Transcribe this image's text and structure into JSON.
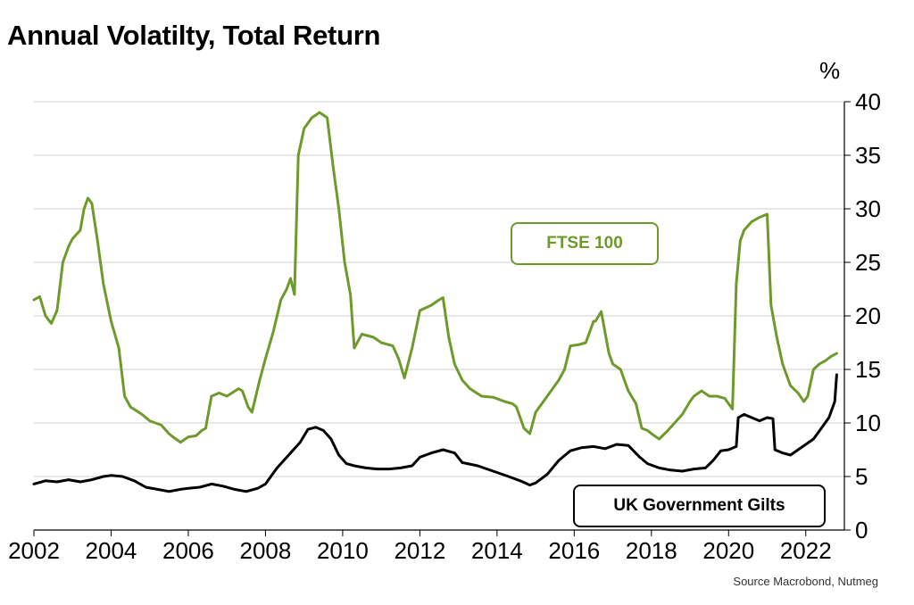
{
  "title": "Annual Volatilty, Total Return",
  "unit": "%",
  "source": "Source Macrobond, Nutmeg",
  "chart_data": {
    "type": "line",
    "title": "Annual Volatilty, Total Return",
    "xlabel": "",
    "ylabel": "%",
    "xlim": [
      2002,
      2023
    ],
    "ylim": [
      0,
      40
    ],
    "x_ticks": [
      "2002",
      "2004",
      "2006",
      "2008",
      "2010",
      "2012",
      "2014",
      "2016",
      "2018",
      "2020",
      "2022"
    ],
    "y_ticks": [
      "0",
      "5",
      "10",
      "15",
      "20",
      "25",
      "30",
      "35",
      "40"
    ],
    "grid": "horizontal",
    "y_axis_side": "right",
    "series": [
      {
        "name": "FTSE 100",
        "color": "#6e9a2c",
        "x": [
          2002.0,
          2002.15,
          2002.3,
          2002.45,
          2002.6,
          2002.75,
          2002.9,
          2003.0,
          2003.2,
          2003.3,
          2003.4,
          2003.5,
          2003.65,
          2003.8,
          2004.0,
          2004.2,
          2004.35,
          2004.5,
          2004.8,
          2005.0,
          2005.3,
          2005.5,
          2005.6,
          2005.8,
          2006.0,
          2006.2,
          2006.35,
          2006.45,
          2006.6,
          2006.8,
          2007.0,
          2007.3,
          2007.4,
          2007.55,
          2007.65,
          2007.85,
          2008.0,
          2008.2,
          2008.4,
          2008.55,
          2008.65,
          2008.75,
          2008.85,
          2009.0,
          2009.2,
          2009.4,
          2009.6,
          2009.75,
          2009.9,
          2010.05,
          2010.2,
          2010.3,
          2010.5,
          2010.8,
          2011.0,
          2011.3,
          2011.45,
          2011.6,
          2011.8,
          2012.0,
          2012.3,
          2012.5,
          2012.6,
          2012.75,
          2012.9,
          2013.1,
          2013.3,
          2013.6,
          2013.9,
          2014.2,
          2014.4,
          2014.5,
          2014.7,
          2014.85,
          2015.0,
          2015.3,
          2015.6,
          2015.75,
          2015.9,
          2016.1,
          2016.3,
          2016.5,
          2016.55,
          2016.7,
          2016.9,
          2017.0,
          2017.2,
          2017.4,
          2017.6,
          2017.75,
          2017.9,
          2018.0,
          2018.2,
          2018.4,
          2018.6,
          2018.8,
          2019.0,
          2019.1,
          2019.3,
          2019.5,
          2019.7,
          2019.9,
          2020.1,
          2020.2,
          2020.3,
          2020.4,
          2020.6,
          2020.8,
          2021.0,
          2021.1,
          2021.25,
          2021.4,
          2021.6,
          2021.8,
          2021.95,
          2022.05,
          2022.2,
          2022.35,
          2022.5,
          2022.65,
          2022.8
        ],
        "values": [
          21.5,
          21.8,
          20.0,
          19.3,
          20.5,
          25.0,
          26.5,
          27.2,
          28.0,
          30.0,
          31.0,
          30.5,
          27.0,
          23.0,
          19.5,
          17.0,
          12.5,
          11.5,
          10.8,
          10.2,
          9.8,
          9.0,
          8.7,
          8.2,
          8.7,
          8.8,
          9.3,
          9.5,
          12.5,
          12.8,
          12.5,
          13.2,
          13.0,
          11.5,
          11.0,
          14.0,
          16.0,
          18.5,
          21.5,
          22.5,
          23.5,
          22.0,
          35.0,
          37.5,
          38.5,
          39.0,
          38.5,
          34.0,
          30.0,
          25.0,
          22.0,
          17.0,
          18.3,
          18.0,
          17.5,
          17.2,
          16.0,
          14.2,
          17.0,
          20.5,
          21.0,
          21.5,
          21.7,
          18.0,
          15.5,
          14.0,
          13.2,
          12.5,
          12.4,
          12.0,
          11.8,
          11.5,
          9.5,
          9.0,
          11.0,
          12.5,
          14.0,
          15.0,
          17.2,
          17.3,
          17.5,
          19.5,
          19.5,
          20.4,
          16.5,
          15.5,
          15.0,
          13.0,
          11.8,
          9.5,
          9.3,
          9.0,
          8.5,
          9.2,
          10.0,
          10.8,
          12.0,
          12.5,
          13.0,
          12.5,
          12.5,
          12.3,
          11.3,
          23.0,
          27.0,
          28.0,
          28.8,
          29.2,
          29.5,
          21.0,
          18.0,
          15.5,
          13.5,
          12.8,
          12.0,
          12.5,
          15.0,
          15.5,
          15.8,
          16.2,
          16.5
        ]
      },
      {
        "name": "UK Government Gilts",
        "color": "#000000",
        "x": [
          2002.0,
          2002.3,
          2002.6,
          2002.9,
          2003.2,
          2003.5,
          2003.8,
          2004.0,
          2004.3,
          2004.6,
          2004.9,
          2005.2,
          2005.5,
          2005.8,
          2006.0,
          2006.3,
          2006.6,
          2006.9,
          2007.2,
          2007.5,
          2007.8,
          2008.0,
          2008.3,
          2008.6,
          2008.9,
          2009.1,
          2009.3,
          2009.5,
          2009.7,
          2009.9,
          2010.1,
          2010.3,
          2010.6,
          2010.9,
          2011.2,
          2011.5,
          2011.8,
          2012.0,
          2012.3,
          2012.6,
          2012.9,
          2013.1,
          2013.5,
          2013.9,
          2014.3,
          2014.6,
          2014.85,
          2015.0,
          2015.3,
          2015.6,
          2015.9,
          2016.2,
          2016.5,
          2016.8,
          2017.1,
          2017.4,
          2017.7,
          2017.9,
          2018.2,
          2018.5,
          2018.8,
          2019.1,
          2019.4,
          2019.6,
          2019.8,
          2020.0,
          2020.2,
          2020.25,
          2020.4,
          2020.6,
          2020.8,
          2021.0,
          2021.15,
          2021.2,
          2021.4,
          2021.6,
          2021.8,
          2022.0,
          2022.2,
          2022.4,
          2022.6,
          2022.75,
          2022.8
        ],
        "values": [
          4.3,
          4.6,
          4.5,
          4.7,
          4.5,
          4.7,
          5.0,
          5.1,
          5.0,
          4.6,
          4.0,
          3.8,
          3.6,
          3.8,
          3.9,
          4.0,
          4.3,
          4.1,
          3.8,
          3.6,
          3.9,
          4.3,
          5.8,
          7.0,
          8.2,
          9.4,
          9.6,
          9.3,
          8.5,
          7.0,
          6.2,
          6.0,
          5.8,
          5.7,
          5.7,
          5.8,
          6.0,
          6.8,
          7.2,
          7.5,
          7.2,
          6.3,
          6.0,
          5.5,
          5.0,
          4.6,
          4.2,
          4.4,
          5.2,
          6.5,
          7.4,
          7.7,
          7.8,
          7.6,
          8.0,
          7.9,
          6.8,
          6.2,
          5.8,
          5.6,
          5.5,
          5.7,
          5.8,
          6.5,
          7.4,
          7.5,
          7.8,
          10.5,
          10.8,
          10.5,
          10.2,
          10.5,
          10.4,
          7.5,
          7.2,
          7.0,
          7.5,
          8.0,
          8.5,
          9.5,
          10.5,
          12.0,
          14.5
        ]
      }
    ]
  },
  "legend": {
    "ftse": "FTSE 100",
    "gilts": "UK Government Gilts"
  }
}
